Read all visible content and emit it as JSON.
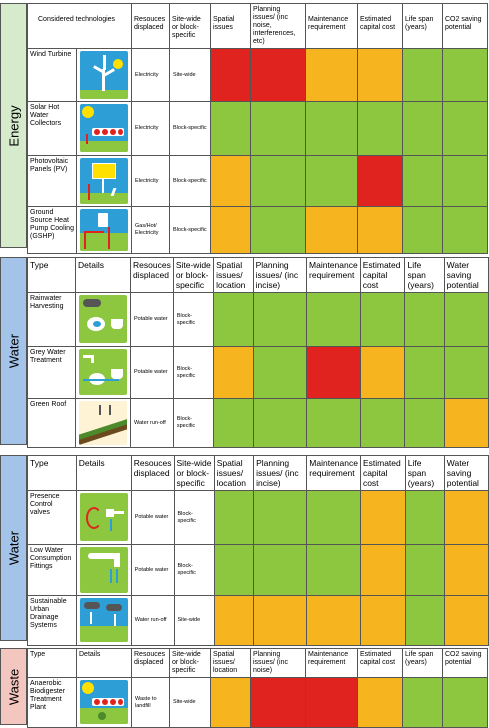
{
  "colors": {
    "green": "#8dc63f",
    "orange": "#f6b51e",
    "red": "#e1231f",
    "energy_side": "#d5ebcc",
    "water_side": "#a3c4e8",
    "waste_side": "#f3c6bf"
  },
  "sections": [
    {
      "label": "Energy",
      "headers": [
        "Considered technologies",
        "",
        "Resouces displaced",
        "Site-wide or block-specific",
        "Spatial issues",
        "Planning issues/ (inc noise, interferences, etc)",
        "Maintenance requirement",
        "Estimated capital cost",
        "Life span (years)",
        "CO2 saving potential"
      ],
      "rows": [
        {
          "name": "Wind Turbine",
          "icon": "wind-turbine-icon",
          "resources": "Electricity",
          "scope": "Site-wide",
          "ratings": [
            "red",
            "red",
            "orange",
            "orange",
            "green",
            "green"
          ]
        },
        {
          "name": "Solar Hot Water Collectors",
          "icon": "solar-hot-water-icon",
          "resources": "Electricity",
          "scope": "Block-specific",
          "ratings": [
            "green",
            "green",
            "green",
            "green",
            "green",
            "green"
          ]
        },
        {
          "name": "Photovoltaic Panels (PV)",
          "icon": "photovoltaic-panel-icon",
          "resources": "Electricity",
          "scope": "Block-specific",
          "ratings": [
            "orange",
            "green",
            "green",
            "red",
            "green",
            "green"
          ]
        },
        {
          "name": "Ground Source Heat Pump Cooling (GSHP)",
          "icon": "ground-source-heat-pump-icon",
          "resources": "Gas/Hot/ Electricity",
          "scope": "Block-specific",
          "ratings": [
            "orange",
            "green",
            "orange",
            "orange",
            "green",
            "green"
          ]
        }
      ]
    },
    {
      "label": "Water",
      "headers": [
        "Type",
        "Details",
        "Resouces displaced",
        "Site-wide or block-specific",
        "Spatial issues/ location",
        "Planning issues/ (inc incise)",
        "Maintenance requirement",
        "Estimated capital cost",
        "Life span (years)",
        "Water saving potential"
      ],
      "rows": [
        {
          "name": "Rainwater Harvesting",
          "icon": "rainwater-harvesting-icon",
          "resources": "Potable water",
          "scope": "Block-specific",
          "ratings": [
            "green",
            "green",
            "green",
            "green",
            "green",
            "green"
          ]
        },
        {
          "name": "Grey Water Treatment",
          "icon": "grey-water-treatment-icon",
          "resources": "Potable water",
          "scope": "Block-specific",
          "ratings": [
            "orange",
            "green",
            "red",
            "orange",
            "green",
            "green"
          ]
        },
        {
          "name": "Green Roof",
          "icon": "green-roof-icon",
          "resources": "Water run-off",
          "scope": "Block-specific",
          "ratings": [
            "green",
            "green",
            "green",
            "green",
            "green",
            "orange"
          ]
        }
      ]
    },
    {
      "label": "Water",
      "headers": [
        "Type",
        "Details",
        "Resouces displaced",
        "Site-wide or block-specific",
        "Spatial issues/ location",
        "Planning issues/ (inc incise)",
        "Maintenance requirement",
        "Estimated capital cost",
        "Life span (years)",
        "Water saving potential"
      ],
      "rows": [
        {
          "name": "Presence Control valves",
          "icon": "presence-control-valve-icon",
          "resources": "Potable water",
          "scope": "Block-specific",
          "ratings": [
            "green",
            "green",
            "green",
            "orange",
            "green",
            "orange"
          ]
        },
        {
          "name": "Low Water Consumption Fittings",
          "icon": "low-water-fitting-icon",
          "resources": "Potable water",
          "scope": "Block-specific",
          "ratings": [
            "green",
            "green",
            "green",
            "orange",
            "green",
            "orange"
          ]
        },
        {
          "name": "Sustainable Urban Drainage Systems",
          "icon": "drainage-system-icon",
          "resources": "Water run-off",
          "scope": "Site-wide",
          "ratings": [
            "orange",
            "orange",
            "orange",
            "orange",
            "green",
            "orange"
          ]
        }
      ]
    },
    {
      "label": "Waste",
      "headers": [
        "Type",
        "Details",
        "Resouces displaced",
        "Site-wide or block-specific",
        "Spatial issues/ location",
        "Planning issues/ (inc noise)",
        "Maintenance requirement",
        "Estimated capital cost",
        "Life span (years)",
        "CO2 saving potential"
      ],
      "rows": [
        {
          "name": "Anaerobic Biodigester Treatment Plant",
          "icon": "biodigester-plant-icon",
          "resources": "Waste to landfill",
          "scope": "Site-wide",
          "ratings": [
            "orange",
            "red",
            "red",
            "orange",
            "green",
            "green"
          ]
        }
      ]
    }
  ]
}
